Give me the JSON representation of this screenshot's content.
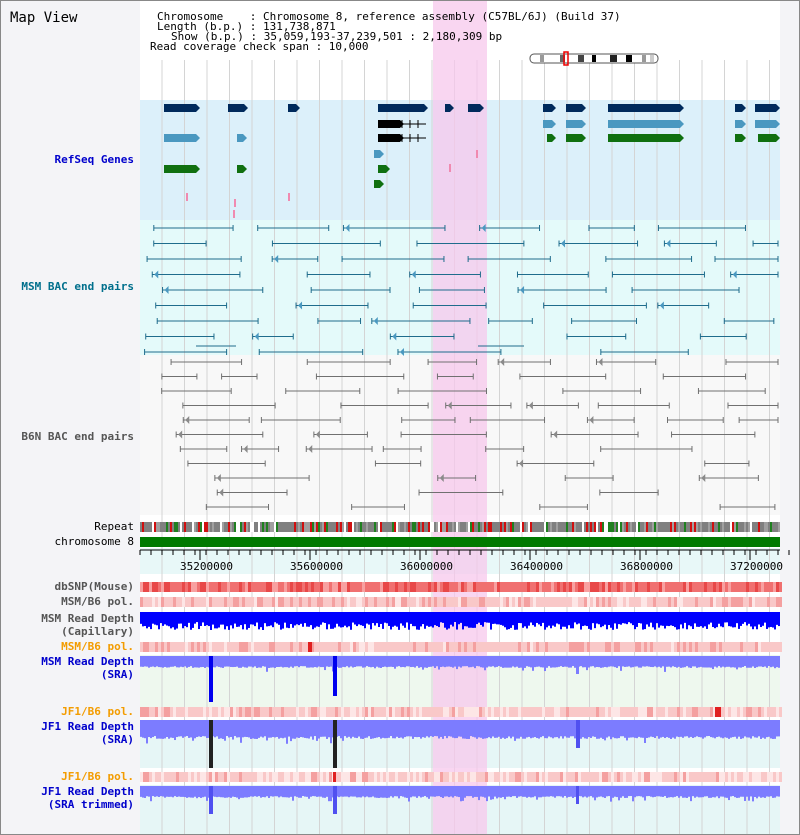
{
  "header": {
    "title": "Map View",
    "chromosome_line": "Chromosome    : Chromosome 8, reference assembly (C57BL/6J) (Build 37)",
    "length_line": "Length (b.p.) : 131,738,871",
    "show_line": "Show (b.p.) : 35,059,193-37,239,501 : 2,180,309 bp",
    "coverage_line": "Read coverage check span : 10,000"
  },
  "tracks": {
    "refseq": "RefSeq Genes",
    "msm_bac": "MSM BAC end pairs",
    "b6n_bac": "B6N BAC end pairs",
    "repeat": "Repeat",
    "chromosome": "chromosome 8",
    "dbsnp": "dbSNP(Mouse)",
    "msm_b6_pol_1": "MSM/B6 pol.",
    "msm_depth_cap_1": "MSM Read Depth",
    "msm_depth_cap_2": "(Capillary)",
    "msm_b6_pol_2": "MSM/B6 pol.",
    "msm_depth_sra_1": "MSM Read Depth",
    "msm_depth_sra_2": "(SRA)",
    "jf1_b6_pol_1": "JF1/B6 pol.",
    "jf1_depth_sra_1": "JF1 Read Depth",
    "jf1_depth_sra_2": "(SRA)",
    "jf1_b6_pol_2": "JF1/B6 pol.",
    "jf1_depth_trim_1": "JF1 Read Depth",
    "jf1_depth_trim_2": "(SRA trimmed)"
  },
  "axis": {
    "ticks": [
      "35200000",
      "35600000",
      "36000000",
      "36400000",
      "36800000",
      "37200000"
    ]
  },
  "colors": {
    "refseq_bg": "#dcf0fa",
    "msm_bg": "#e4fafa",
    "highlight": "#f7c8ec",
    "gene_dark": "#002a5c",
    "gene_mid": "#4a98c0",
    "gene_green": "#107010",
    "chrom_green": "#007a00",
    "depth_blue": "#0000ff",
    "depth_light": "#7c7cff",
    "snp_red": "#f06060"
  }
}
